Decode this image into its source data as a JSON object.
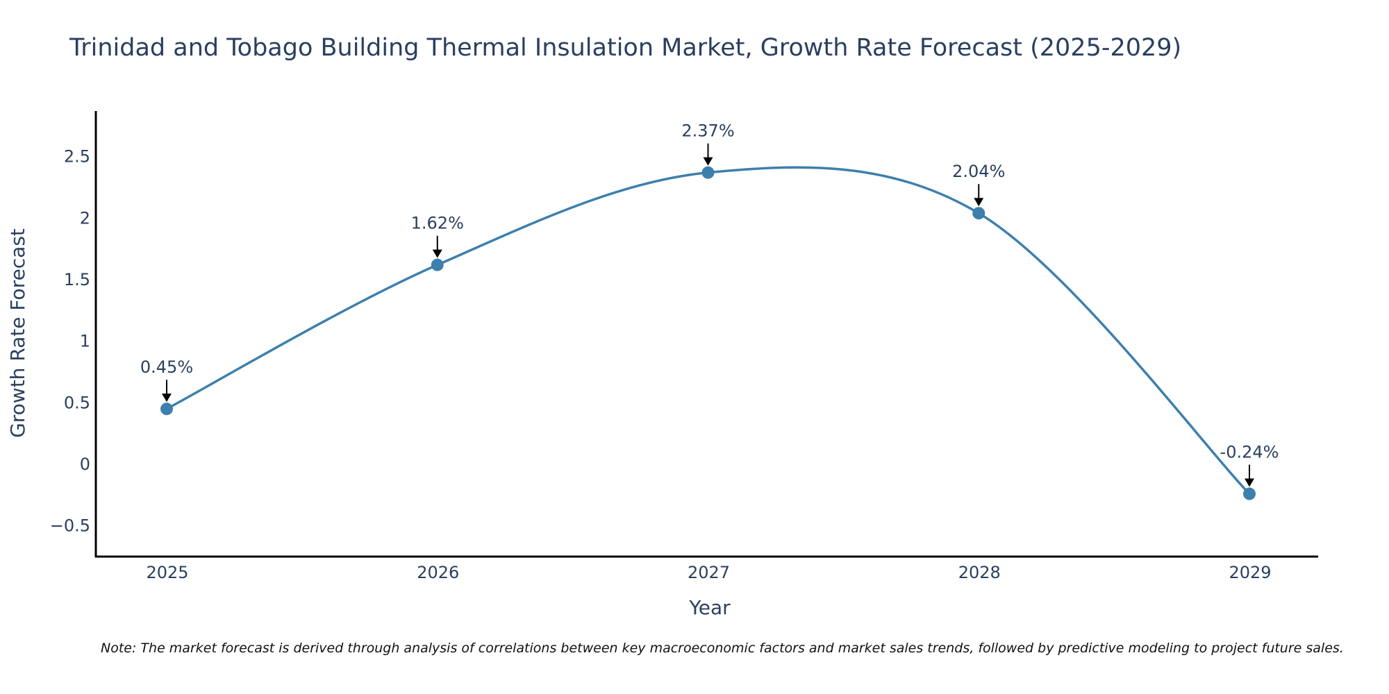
{
  "chart_data": {
    "type": "line",
    "title": "Trinidad and Tobago Building Thermal Insulation Market, Growth Rate Forecast (2025-2029)",
    "xlabel": "Year",
    "ylabel": "Growth Rate Forecast",
    "categories": [
      "2025",
      "2026",
      "2027",
      "2028",
      "2029"
    ],
    "series": [
      {
        "name": "Growth Rate Forecast",
        "values": [
          0.45,
          1.62,
          2.37,
          2.04,
          -0.24
        ],
        "labels": [
          "0.45%",
          "1.62%",
          "2.37%",
          "2.04%",
          "-0.24%"
        ],
        "color": "#3d7fad"
      }
    ],
    "ylim": [
      -0.75,
      2.87
    ],
    "yticks": [
      -0.5,
      0,
      0.5,
      1,
      1.5,
      2,
      2.5
    ],
    "ytick_labels": [
      "−0.5",
      "0",
      "0.5",
      "1",
      "1.5",
      "2",
      "2.5"
    ],
    "grid": false,
    "line_shape": "spline",
    "note": "Note: The market forecast is derived through analysis of correlations between key macroeconomic factors and market sales trends, followed by predictive modeling to project future sales."
  },
  "colors": {
    "line": "#3d7fad",
    "marker": "#3d7fad",
    "text": "#2a3f5f",
    "axis": "#000000",
    "arrow": "#000000"
  }
}
